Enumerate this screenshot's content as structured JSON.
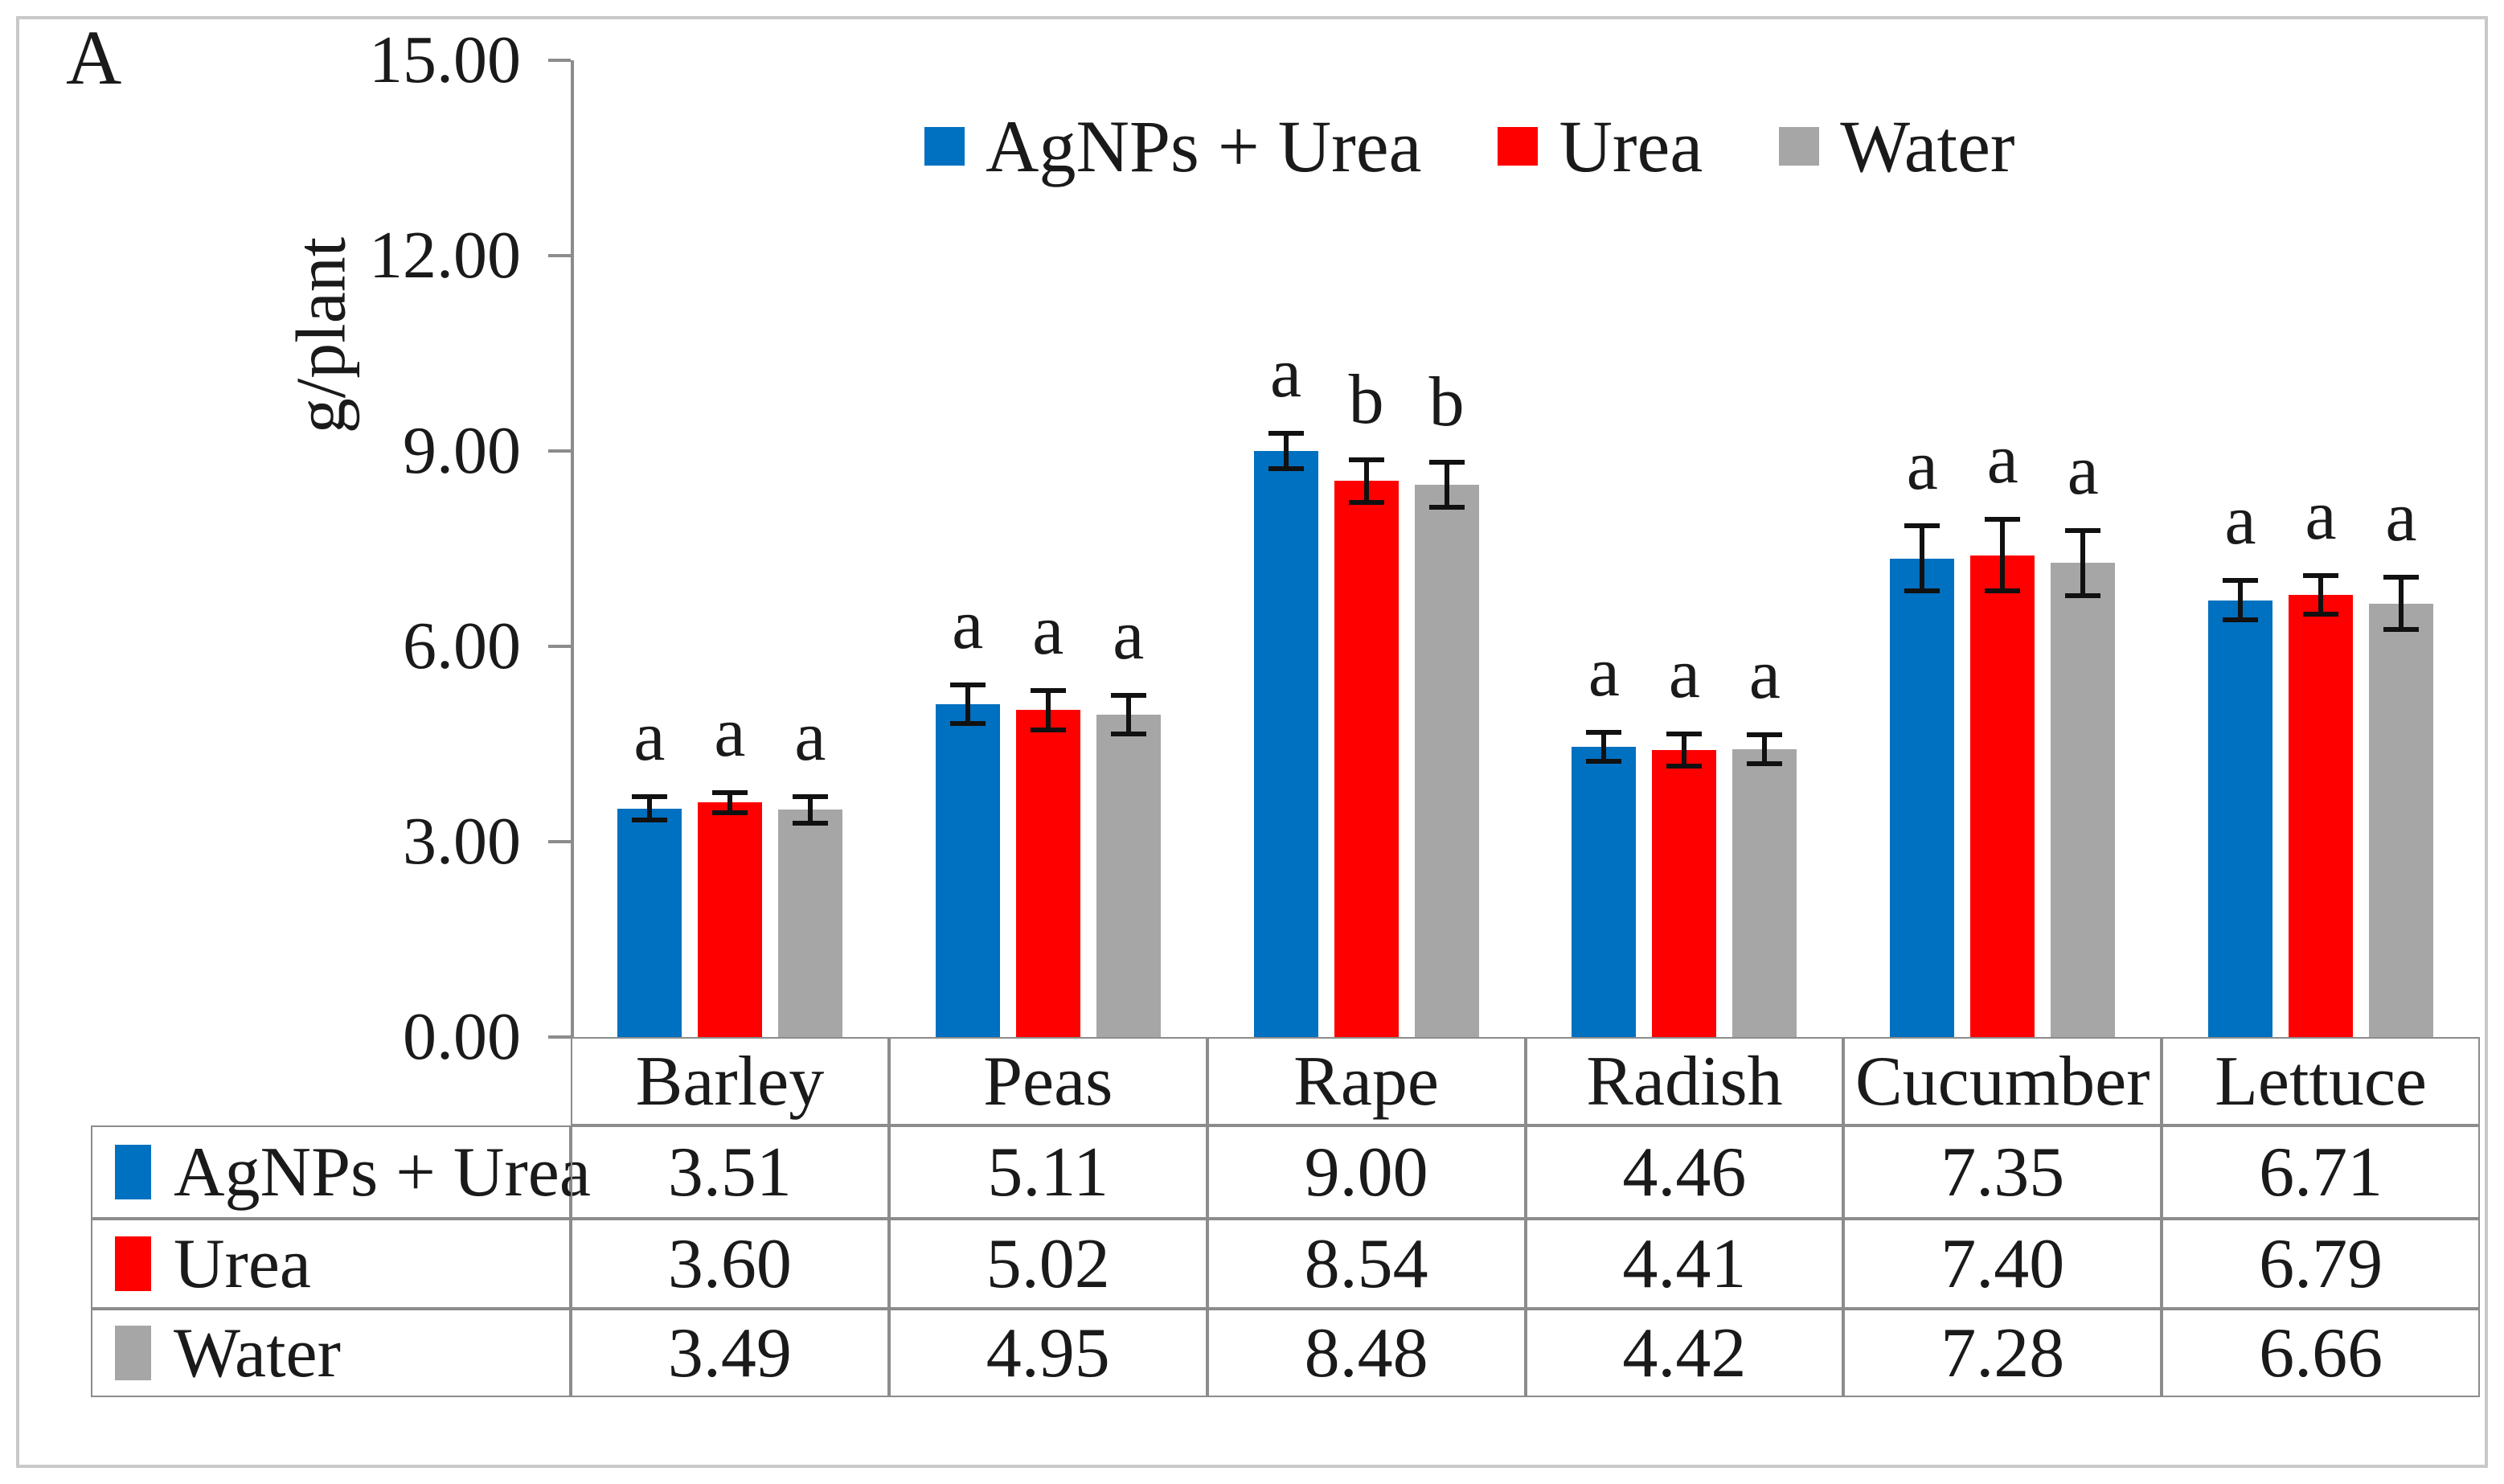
{
  "panel_label": "A",
  "colors": {
    "agnps_urea": "#0070C0",
    "urea": "#FF0000",
    "water": "#A6A6A6",
    "axis_line": "#8c8c8c",
    "error_bar": "#111111",
    "figure_border": "#c9c9c9"
  },
  "chart_data": {
    "type": "bar",
    "title": "",
    "xlabel": "",
    "ylabel": "g/plant",
    "ylim": [
      0,
      15
    ],
    "yticks": [
      0,
      3,
      6,
      9,
      12,
      15
    ],
    "ytick_labels": [
      "0.00",
      "3.00",
      "6.00",
      "9.00",
      "12.00",
      "15.00"
    ],
    "grid": false,
    "legend_position": "top-center",
    "categories": [
      "Barley",
      "Peas",
      "Rape",
      "Radish",
      "Cucumber",
      "Lettuce"
    ],
    "series": [
      {
        "name": "AgNPs + Urea",
        "color": "#0070C0",
        "values": [
          3.51,
          5.11,
          9.0,
          4.46,
          7.35,
          6.71
        ],
        "values_display": [
          "3.51",
          "5.11",
          "9.00",
          "4.46",
          "7.35",
          "6.71"
        ],
        "errors": [
          0.18,
          0.3,
          0.27,
          0.22,
          0.5,
          0.3
        ],
        "sig_letters": [
          "a",
          "a",
          "a",
          "a",
          "a",
          "a"
        ]
      },
      {
        "name": "Urea",
        "color": "#FF0000",
        "values": [
          3.6,
          5.02,
          8.54,
          4.41,
          7.4,
          6.79
        ],
        "values_display": [
          "3.60",
          "5.02",
          "8.54",
          "4.41",
          "7.40",
          "6.79"
        ],
        "errors": [
          0.15,
          0.3,
          0.33,
          0.25,
          0.55,
          0.3
        ],
        "sig_letters": [
          "a",
          "a",
          "b",
          "a",
          "a",
          "a"
        ]
      },
      {
        "name": "Water",
        "color": "#A6A6A6",
        "values": [
          3.49,
          4.95,
          8.48,
          4.42,
          7.28,
          6.66
        ],
        "values_display": [
          "3.49",
          "4.95",
          "8.48",
          "4.42",
          "7.28",
          "6.66"
        ],
        "errors": [
          0.2,
          0.3,
          0.35,
          0.22,
          0.5,
          0.4
        ],
        "sig_letters": [
          "a",
          "a",
          "b",
          "a",
          "a",
          "a"
        ]
      }
    ]
  }
}
